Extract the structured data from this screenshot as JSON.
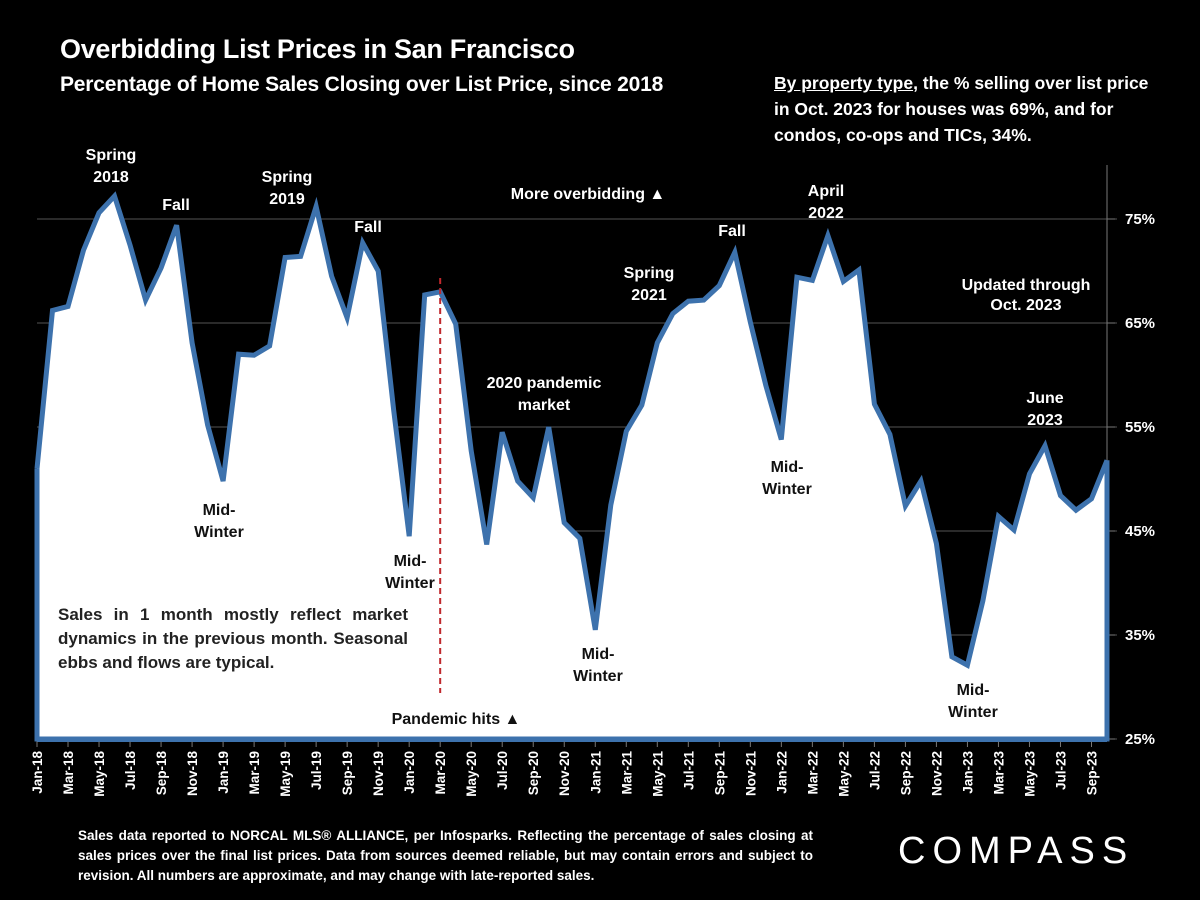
{
  "header": {
    "title": "Overbidding List Prices in San Francisco",
    "subtitle": "Percentage of Home Sales Closing over List Price, since 2018"
  },
  "property_note": {
    "underlined": "By property type",
    "rest": ", the % selling over list price in Oct. 2023 for houses was 69%, and for condos, co-ops and TICs, 34%."
  },
  "inside_note": "Sales in 1 month mostly reflect market dynamics in the previous month. Seasonal ebbs and flows are typical.",
  "footer": "Sales data reported to NORCAL MLS® ALLIANCE, per Infosparks. Reflecting the percentage of sales closing at sales prices over the final list prices. Data from sources deemed reliable, but may contain errors and subject to revision. All numbers are approximate, and may change with late-reported sales.",
  "logo": "COMPASS",
  "colors": {
    "background": "#000000",
    "area_fill": "#ffffff",
    "line": "#3d72ad",
    "pandemic_marker": "#c0282d"
  },
  "chart_data": {
    "type": "area",
    "title": "Overbidding List Prices in San Francisco",
    "subtitle": "Percentage of Home Sales Closing over List Price, since 2018",
    "xlabel": "",
    "ylabel": "",
    "ylim": [
      25,
      80
    ],
    "yticks": [
      25,
      35,
      45,
      55,
      65,
      75
    ],
    "ytick_labels": [
      "25%",
      "35%",
      "45%",
      "55%",
      "65%",
      "75%"
    ],
    "y_axis_position": "right",
    "grid": true,
    "x": [
      "Jan-18",
      "Feb-18",
      "Mar-18",
      "Apr-18",
      "May-18",
      "Jun-18",
      "Jul-18",
      "Aug-18",
      "Sep-18",
      "Oct-18",
      "Nov-18",
      "Dec-18",
      "Jan-19",
      "Feb-19",
      "Mar-19",
      "Apr-19",
      "May-19",
      "Jun-19",
      "Jul-19",
      "Aug-19",
      "Sep-19",
      "Oct-19",
      "Nov-19",
      "Dec-19",
      "Jan-20",
      "Feb-20",
      "Mar-20",
      "Apr-20",
      "May-20",
      "Jun-20",
      "Jul-20",
      "Aug-20",
      "Sep-20",
      "Oct-20",
      "Nov-20",
      "Dec-20",
      "Jan-21",
      "Feb-21",
      "Mar-21",
      "Apr-21",
      "May-21",
      "Jun-21",
      "Jul-21",
      "Aug-21",
      "Sep-21",
      "Oct-21",
      "Nov-21",
      "Dec-21",
      "Jan-22",
      "Feb-22",
      "Mar-22",
      "Apr-22",
      "May-22",
      "Jun-22",
      "Jul-22",
      "Aug-22",
      "Sep-22",
      "Oct-22",
      "Nov-22",
      "Dec-22",
      "Jan-23",
      "Feb-23",
      "Mar-23",
      "Apr-23",
      "May-23",
      "Jun-23",
      "Jul-23",
      "Aug-23",
      "Sep-23",
      "Oct-23"
    ],
    "xtick_labels": [
      "Jan-18",
      "Mar-18",
      "May-18",
      "Jul-18",
      "Sep-18",
      "Nov-18",
      "Jan-19",
      "Mar-19",
      "May-19",
      "Jul-19",
      "Sep-19",
      "Nov-19",
      "Jan-20",
      "Mar-20",
      "May-20",
      "Jul-20",
      "Sep-20",
      "Nov-20",
      "Jan-21",
      "Mar-21",
      "May-21",
      "Jul-21",
      "Sep-21",
      "Nov-21",
      "Jan-22",
      "Mar-22",
      "May-22",
      "Jul-22",
      "Sep-22",
      "Nov-22",
      "Jan-23",
      "Mar-23",
      "May-23",
      "Jul-23",
      "Sep-23"
    ],
    "series": [
      {
        "name": "% of sales over list price",
        "values": [
          51,
          66.2,
          66.6,
          72,
          75.6,
          77.2,
          72.5,
          67.2,
          70.3,
          74.4,
          63.1,
          55.2,
          49.8,
          62,
          61.9,
          62.8,
          71.3,
          71.4,
          76.2,
          69.5,
          65.5,
          72.7,
          70,
          56.6,
          44.5,
          67.7,
          68,
          64.9,
          52.7,
          43.7,
          54.5,
          49.8,
          48.2,
          55,
          45.8,
          44.3,
          35.5,
          47.5,
          54.6,
          57.1,
          63.1,
          65.9,
          67.1,
          67.2,
          68.6,
          71.8,
          65.1,
          59,
          53.8,
          69.4,
          69.1,
          73.4,
          69,
          70.1,
          57.2,
          54.3,
          47.4,
          49.8,
          43.8,
          32.9,
          32.1,
          38.3,
          46.4,
          45.1,
          50.5,
          53.2,
          48.4,
          47,
          48.1,
          51.8
        ]
      }
    ],
    "annotations": [
      {
        "text": [
          "Spring",
          "2018"
        ],
        "x": "Jun-18",
        "color": "white",
        "position": "above"
      },
      {
        "text": [
          "Fall"
        ],
        "x": "Oct-18",
        "color": "white",
        "position": "above"
      },
      {
        "text": [
          "Mid-",
          "Winter"
        ],
        "x": "Jan-19",
        "color": "black",
        "position": "below"
      },
      {
        "text": [
          "Spring",
          "2019"
        ],
        "x": "Jul-19",
        "color": "white",
        "position": "above"
      },
      {
        "text": [
          "Fall"
        ],
        "x": "Oct-19",
        "color": "white",
        "position": "above"
      },
      {
        "text": [
          "Mid-",
          "Winter"
        ],
        "x": "Jan-20",
        "color": "black",
        "position": "below"
      },
      {
        "text": [
          "2020 pandemic",
          "market"
        ],
        "x": "Aug-20",
        "color": "white",
        "position": "above"
      },
      {
        "text": [
          "Mid-",
          "Winter"
        ],
        "x": "Jan-21",
        "color": "black",
        "position": "below"
      },
      {
        "text": [
          "Spring",
          "2021"
        ],
        "x": "May-21",
        "color": "white",
        "position": "above"
      },
      {
        "text": [
          "Fall"
        ],
        "x": "Oct-21",
        "color": "white",
        "position": "above"
      },
      {
        "text": [
          "Mid-",
          "Winter"
        ],
        "x": "Jan-22",
        "color": "black",
        "position": "below"
      },
      {
        "text": [
          "April",
          "2022"
        ],
        "x": "Apr-22",
        "color": "white",
        "position": "above"
      },
      {
        "text": [
          "Mid-",
          "Winter"
        ],
        "x": "Jan-23",
        "color": "black",
        "position": "below"
      },
      {
        "text": [
          "June",
          "2023"
        ],
        "x": "Jun-23",
        "color": "white",
        "position": "above"
      },
      {
        "text": [
          "Updated through",
          "Oct. 2023"
        ],
        "color": "white",
        "position": "top-right"
      },
      {
        "text": [
          "More overbidding ▲"
        ],
        "color": "white",
        "position": "top-center"
      },
      {
        "text": [
          "Pandemic hits ▲"
        ],
        "x": "Mar-20",
        "color": "black",
        "position": "bottom"
      }
    ],
    "reference_lines": [
      {
        "type": "vertical-dashed",
        "x": "Mar-20",
        "label": "Pandemic hits"
      }
    ]
  }
}
